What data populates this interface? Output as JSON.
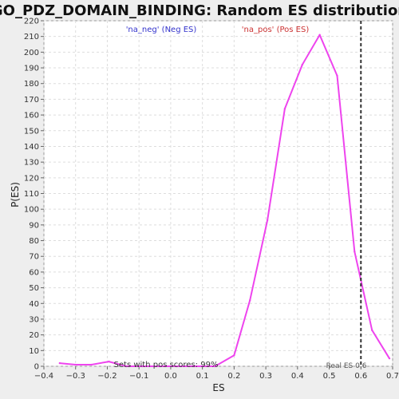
{
  "chart_data": {
    "type": "line",
    "title": "GO_PDZ_DOMAIN_BINDING: Random ES distribution",
    "xlabel": "ES",
    "ylabel": "P(ES)",
    "xlim": [
      -0.4,
      0.7
    ],
    "ylim": [
      0,
      220
    ],
    "x_ticks": [
      "−0.4",
      "−0.3",
      "−0.2",
      "−0.1",
      "0.0",
      "0.1",
      "0.2",
      "0.3",
      "0.4",
      "0.5",
      "0.6",
      "0.7"
    ],
    "x_tick_values": [
      -0.4,
      -0.3,
      -0.2,
      -0.1,
      0.0,
      0.1,
      0.2,
      0.3,
      0.4,
      0.5,
      0.6,
      0.7
    ],
    "y_ticks": [
      0,
      10,
      20,
      30,
      40,
      50,
      60,
      70,
      80,
      90,
      100,
      110,
      120,
      130,
      140,
      150,
      160,
      170,
      180,
      190,
      200,
      210,
      220
    ],
    "grid": true,
    "legend": [
      {
        "label": "'na_neg' (Neg ES)",
        "color": "#3333cc"
      },
      {
        "label": "'na_pos' (Pos ES)",
        "color": "#cc3333"
      }
    ],
    "series": [
      {
        "color": "#ee44ee",
        "x": [
          -0.35,
          -0.3,
          -0.25,
          -0.195,
          -0.14,
          -0.09,
          -0.035,
          0.02,
          0.075,
          0.14,
          0.2,
          0.25,
          0.305,
          0.36,
          0.415,
          0.47,
          0.525,
          0.58,
          0.635,
          0.69
        ],
        "y": [
          2,
          1,
          1,
          3,
          0,
          0,
          0,
          0,
          0,
          0,
          7,
          42,
          93,
          164,
          192,
          211,
          185,
          73,
          23,
          5
        ]
      }
    ],
    "reference_line": {
      "x": 0.6,
      "label": "Real ES 0.6",
      "color": "#333333"
    },
    "annotation": "Sets with pos scores: 99%"
  }
}
